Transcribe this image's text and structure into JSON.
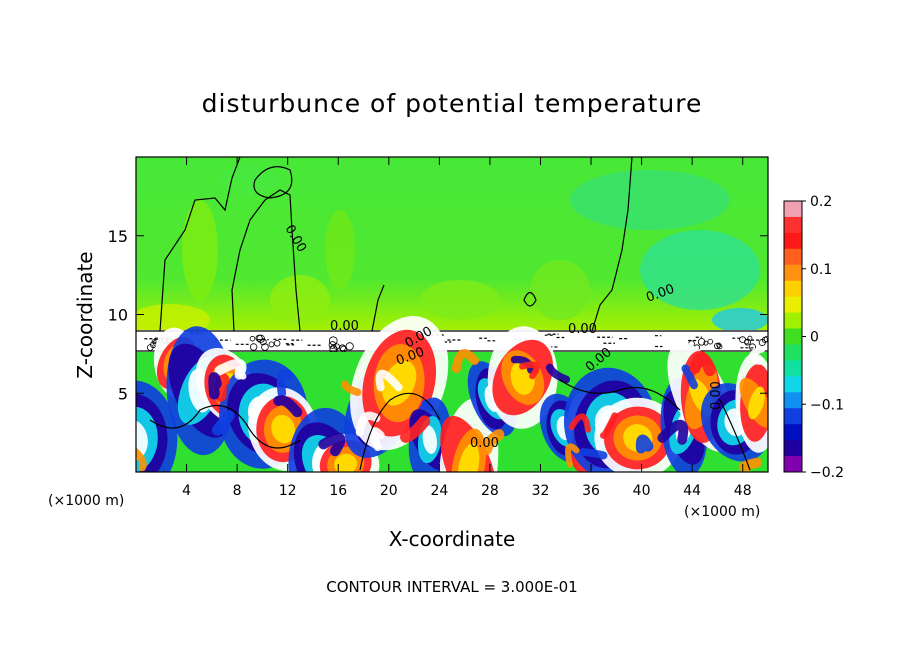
{
  "chart_data": {
    "type": "heatmap",
    "title": "disturbunce of potential temperature",
    "xlabel": "X-coordinate",
    "ylabel": "Z-coordinate",
    "x_unit_left": "(×1000 m)",
    "x_unit_right": "(×1000 m)",
    "xlim": [
      0,
      50
    ],
    "ylim": [
      0,
      20
    ],
    "x_ticks": [
      4,
      8,
      12,
      16,
      20,
      24,
      28,
      32,
      36,
      40,
      44,
      48
    ],
    "y_ticks": [
      5,
      10,
      15
    ],
    "colorbar": {
      "range": [
        -0.2,
        0.2
      ],
      "ticks": [
        0.2,
        0.1,
        0,
        -0.1,
        -0.2
      ],
      "tick_labels": [
        "0.2",
        "0.1",
        "0",
        "−0.1",
        "−0.2"
      ],
      "colors": [
        "#f0a0b0",
        "#ff3030",
        "#ff1a1a",
        "#ff6020",
        "#ff9010",
        "#ffd000",
        "#e8f000",
        "#a0f000",
        "#40e020",
        "#20e060",
        "#10e0a0",
        "#10d8e8",
        "#1090f0",
        "#1040e0",
        "#0010c0",
        "#2000a0",
        "#8000b0"
      ]
    },
    "contour_labels": [
      "0.00",
      "0.00",
      "0.00",
      "0.00",
      "0.00",
      "0.00",
      "0.00",
      "0.00",
      "0.00"
    ],
    "footer": "CONTOUR INTERVAL = 3.000E-01"
  },
  "colors": {
    "upper_field": "#40e040",
    "inversion_band": "#ffffff",
    "frame": "#000000"
  }
}
